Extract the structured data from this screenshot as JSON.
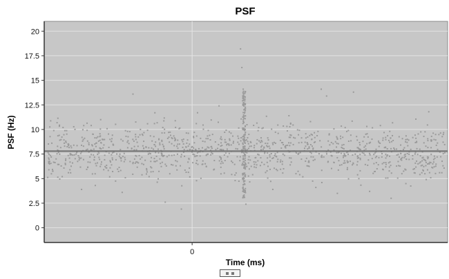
{
  "chart_data": {
    "type": "scatter",
    "title": "PSF",
    "xlabel": "Time (ms)",
    "ylabel": "PSF (Hz)",
    "ylim": [
      -1.5,
      21
    ],
    "yticks": [
      "0",
      "2.5",
      "5",
      "7.5",
      "10",
      "12.5",
      "15",
      "17.5",
      "20"
    ],
    "ytick_values": [
      0,
      2.5,
      5,
      7.5,
      10,
      12.5,
      15,
      17.5,
      20
    ],
    "xtick_labels": [
      "0"
    ],
    "grid": true,
    "mean_line": {
      "value": 7.8,
      "color": "#6e6e6e"
    },
    "colors": {
      "points": "#9a9a9a",
      "plot_bg": "#c7c7c7",
      "grid": "#e4e4e4"
    },
    "series": [
      {
        "values_description_free": true,
        "points": [
          [
            -100,
            7.9
          ],
          [
            -96,
            10.2
          ],
          [
            -92,
            5.6
          ],
          [
            -88,
            8.4
          ],
          [
            -84,
            6.9
          ],
          [
            -80,
            9.1
          ],
          [
            -76,
            7.2
          ],
          [
            -72,
            4.3
          ],
          [
            -68,
            11.0
          ],
          [
            -64,
            6.1
          ],
          [
            -60,
            8.8
          ],
          [
            -56,
            7.5
          ],
          [
            -52,
            3.6
          ],
          [
            -48,
            9.8
          ],
          [
            -44,
            13.6
          ],
          [
            -40,
            6.6
          ],
          [
            -36,
            8.1
          ],
          [
            -32,
            5.2
          ],
          [
            -28,
            10.6
          ],
          [
            -24,
            7.0
          ],
          [
            -20,
            2.6
          ],
          [
            -16,
            9.4
          ],
          [
            -12,
            6.3
          ],
          [
            -8,
            1.9
          ],
          [
            -4,
            8.6
          ],
          [
            0,
            7.7
          ],
          [
            4,
            11.7
          ],
          [
            8,
            6.8
          ],
          [
            12,
            9.9
          ],
          [
            16,
            5.9
          ],
          [
            20,
            12.4
          ],
          [
            24,
            7.4
          ],
          [
            28,
            8.9
          ],
          [
            32,
            4.8
          ],
          [
            36,
            18.2
          ],
          [
            37,
            16.3
          ],
          [
            38,
            14.1
          ],
          [
            38.5,
            12.0
          ],
          [
            39,
            3.1
          ],
          [
            40,
            2.4
          ],
          [
            44,
            8.3
          ],
          [
            48,
            6.4
          ],
          [
            52,
            10.1
          ],
          [
            56,
            7.1
          ],
          [
            60,
            3.9
          ],
          [
            64,
            9.6
          ],
          [
            68,
            6.0
          ],
          [
            72,
            11.4
          ],
          [
            76,
            7.8
          ],
          [
            80,
            5.4
          ],
          [
            84,
            8.7
          ],
          [
            88,
            10.8
          ],
          [
            92,
            4.1
          ],
          [
            96,
            14.1
          ],
          [
            100,
            13.4
          ],
          [
            104,
            7.3
          ],
          [
            108,
            3.5
          ],
          [
            112,
            9.2
          ],
          [
            116,
            6.7
          ],
          [
            120,
            13.8
          ],
          [
            124,
            5.0
          ],
          [
            128,
            8.2
          ],
          [
            132,
            3.7
          ],
          [
            136,
            7.6
          ],
          [
            140,
            10.4
          ],
          [
            144,
            6.2
          ],
          [
            148,
            3.0
          ],
          [
            152,
            8.0
          ],
          [
            156,
            5.5
          ],
          [
            160,
            9.0
          ],
          [
            164,
            7.0
          ],
          [
            168,
            6.5
          ],
          [
            172,
            5.8
          ],
          [
            176,
            11.8
          ],
          [
            180,
            6.2
          ],
          [
            184,
            5.6
          ]
        ]
      }
    ]
  },
  "legend": {
    "label": ""
  }
}
